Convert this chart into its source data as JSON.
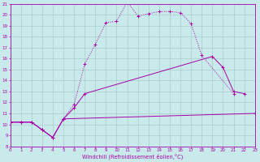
{
  "xlabel": "Windchill (Refroidissement éolien,°C)",
  "bg_color": "#c8eaea",
  "grid_color": "#aacccc",
  "line_color": "#aa00aa",
  "xmin": 0,
  "xmax": 23,
  "ymin": 8,
  "ymax": 21,
  "curve1_x": [
    0,
    1,
    2,
    3,
    4,
    5,
    6,
    7,
    8,
    9,
    10,
    11,
    12,
    13,
    14,
    15,
    16,
    17,
    18,
    21
  ],
  "curve1_y": [
    10.2,
    10.2,
    10.2,
    9.5,
    8.8,
    10.5,
    11.8,
    15.5,
    17.3,
    19.3,
    19.4,
    21.2,
    19.9,
    20.1,
    20.3,
    20.3,
    20.2,
    19.2,
    16.3,
    12.8
  ],
  "curve2_x": [
    0,
    1,
    2,
    3,
    4,
    5,
    6,
    7,
    19,
    20,
    21,
    22
  ],
  "curve2_y": [
    10.2,
    10.2,
    10.2,
    9.5,
    8.8,
    10.5,
    11.5,
    12.8,
    16.2,
    15.2,
    13.0,
    12.8
  ],
  "curve3_x": [
    0,
    1,
    2,
    3,
    4,
    5,
    23
  ],
  "curve3_y": [
    10.2,
    10.2,
    10.2,
    9.5,
    8.8,
    10.5,
    11.0
  ]
}
